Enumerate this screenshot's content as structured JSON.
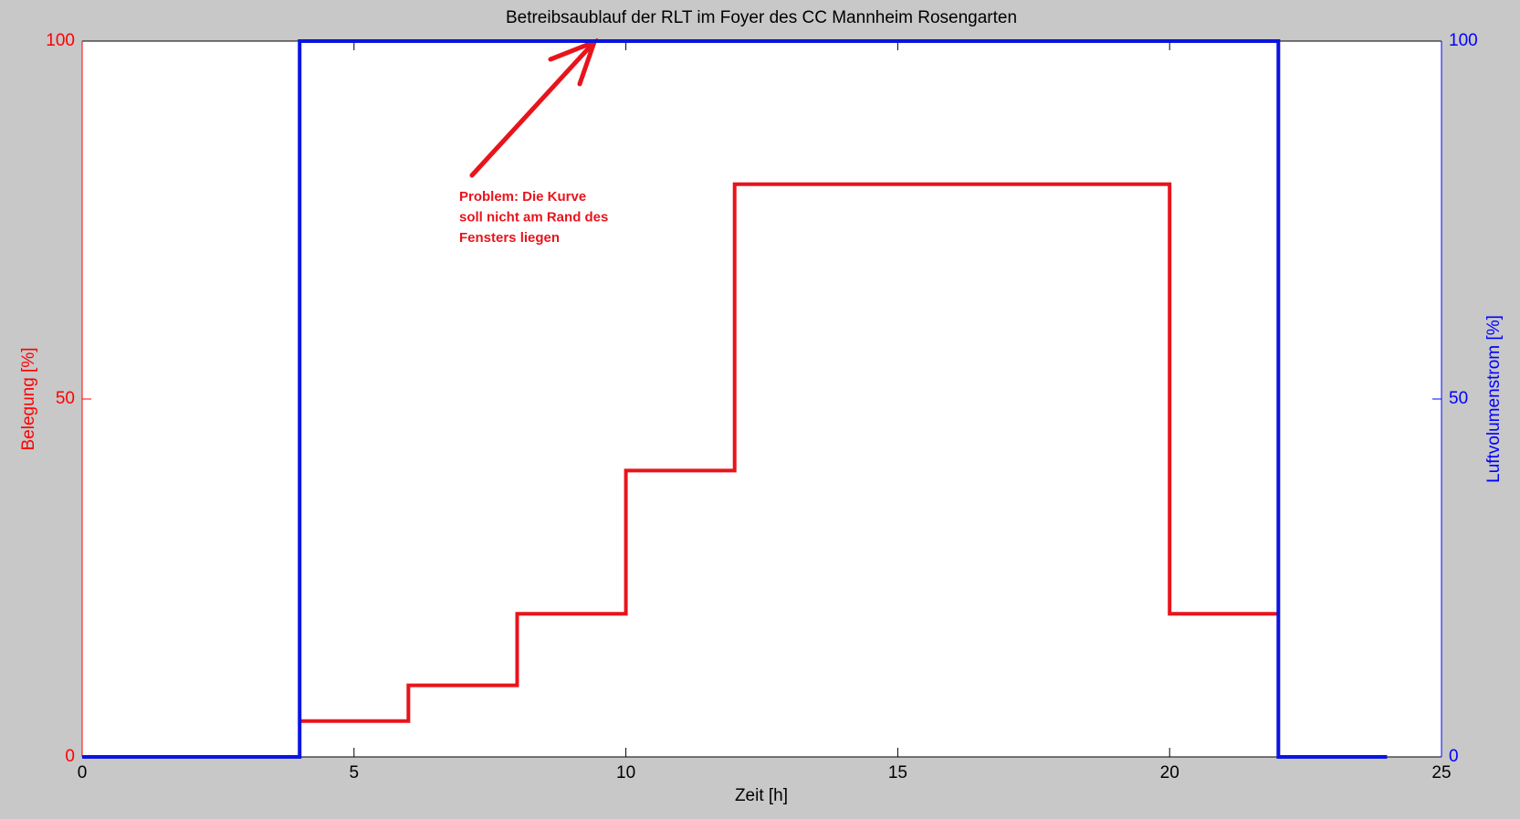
{
  "chart_data": {
    "type": "line",
    "title": "Betreibsaublauf der RLT im Foyer des CC Mannheim Rosengarten",
    "x_label": "Zeit [h]",
    "y_label": "Belegung [%]",
    "y2_label": "Luftvolumenstrom [%]",
    "xlim": [
      0,
      25
    ],
    "xticks": [
      0,
      5,
      10,
      15,
      20,
      25
    ],
    "ylim": [
      0,
      100
    ],
    "yticks": [
      0,
      50,
      100
    ],
    "y2lim": [
      0,
      100
    ],
    "y2ticks": [
      0,
      50,
      100
    ],
    "series": [
      {
        "name": "Belegung",
        "color": "#e8141c",
        "x": [
          4,
          6,
          6,
          8,
          8,
          10,
          10,
          12,
          12,
          20,
          20,
          22
        ],
        "values": [
          5,
          5,
          10,
          10,
          20,
          20,
          40,
          40,
          80,
          80,
          20,
          20
        ]
      },
      {
        "name": "Luftvolumenstrom",
        "color": "#0a14e0",
        "axis": "y2",
        "x": [
          0,
          4,
          4,
          22,
          22,
          24
        ],
        "values": [
          0,
          0,
          100,
          100,
          0,
          0
        ]
      }
    ],
    "annotation": [
      "Problem: Die Kurve",
      "soll nicht am Rand des",
      "Fensters liegen"
    ]
  }
}
